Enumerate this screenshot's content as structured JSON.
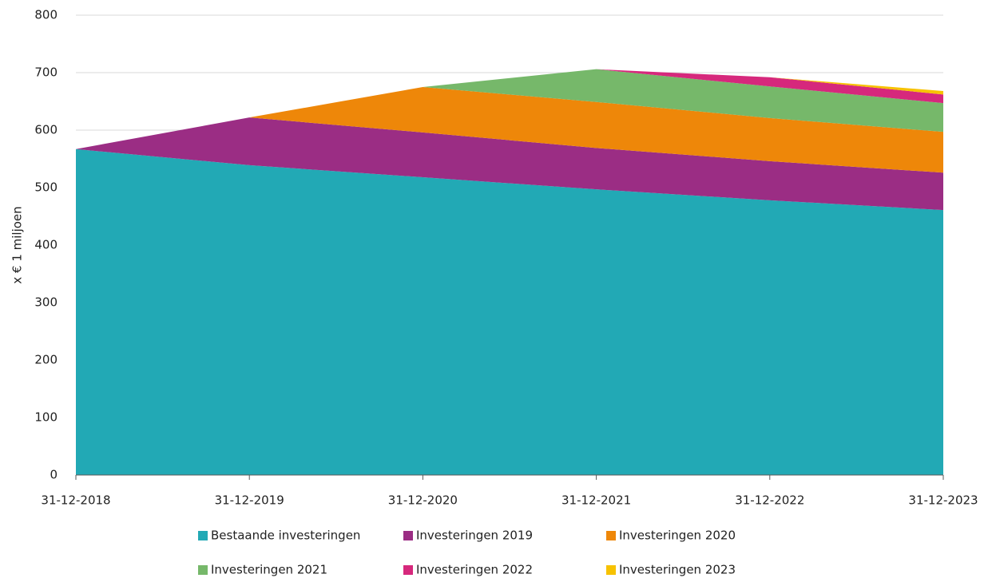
{
  "chart_data": {
    "type": "stacked_area",
    "y_axis_label": "x € 1 miljoen",
    "categories": [
      "31-12-2018",
      "31-12-2019",
      "31-12-2020",
      "31-12-2021",
      "31-12-2022",
      "31-12-2023"
    ],
    "series": [
      {
        "name": "Bestaande investeringen",
        "color": "#22a9b5",
        "values": [
          567,
          539,
          518,
          497,
          478,
          461
        ]
      },
      {
        "name": "Investeringen 2019",
        "color": "#9b2d84",
        "values": [
          0,
          83,
          78,
          72,
          68,
          65
        ]
      },
      {
        "name": "Investeringen 2020",
        "color": "#ee8709",
        "values": [
          0,
          0,
          79,
          80,
          75,
          71
        ]
      },
      {
        "name": "Investeringen 2021",
        "color": "#76b86a",
        "values": [
          0,
          0,
          0,
          57,
          55,
          50
        ]
      },
      {
        "name": "Investeringen 2022",
        "color": "#d6287c",
        "values": [
          0,
          0,
          0,
          0,
          16,
          15
        ]
      },
      {
        "name": "Investeringen 2023",
        "color": "#f7c200",
        "values": [
          0,
          0,
          0,
          0,
          0,
          6
        ]
      }
    ],
    "ylim": [
      0,
      800
    ],
    "yticks": [
      0,
      100,
      200,
      300,
      400,
      500,
      600,
      700,
      800
    ],
    "grid": true,
    "legend": "bottom"
  }
}
